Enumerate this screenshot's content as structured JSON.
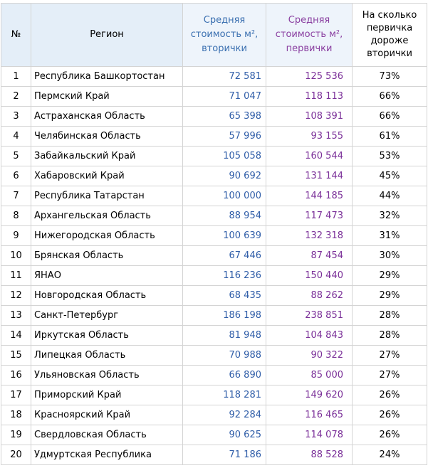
{
  "table": {
    "headers": {
      "num": "№",
      "region": "Регион",
      "secondary": [
        "Средняя",
        "стоимость м²,",
        "вторички"
      ],
      "primary": [
        "Средняя",
        "стоимость м²,",
        "первички"
      ],
      "percent": [
        "На сколько",
        "первичка",
        "дороже",
        "вторички"
      ]
    },
    "rows": [
      {
        "n": "1",
        "region": "Республика Башкортостан",
        "secondary": "72 581",
        "primary": "125 536",
        "percent": "73%"
      },
      {
        "n": "2",
        "region": "Пермский Край",
        "secondary": "71 047",
        "primary": "118 113",
        "percent": "66%"
      },
      {
        "n": "3",
        "region": "Астраханская Область",
        "secondary": "65 398",
        "primary": "108 391",
        "percent": "66%"
      },
      {
        "n": "4",
        "region": "Челябинская Область",
        "secondary": "57 996",
        "primary": "93 155",
        "percent": "61%"
      },
      {
        "n": "5",
        "region": "Забайкальский Край",
        "secondary": "105 058",
        "primary": "160 544",
        "percent": "53%"
      },
      {
        "n": "6",
        "region": "Хабаровский Край",
        "secondary": "90 692",
        "primary": "131 144",
        "percent": "45%"
      },
      {
        "n": "7",
        "region": "Республика Татарстан",
        "secondary": "100 000",
        "primary": "144 185",
        "percent": "44%"
      },
      {
        "n": "8",
        "region": "Архангельская Область",
        "secondary": "88 954",
        "primary": "117 473",
        "percent": "32%"
      },
      {
        "n": "9",
        "region": "Нижегородская Область",
        "secondary": "100 639",
        "primary": "132 318",
        "percent": "31%"
      },
      {
        "n": "10",
        "region": "Брянская Область",
        "secondary": "67 446",
        "primary": "87 454",
        "percent": "30%"
      },
      {
        "n": "11",
        "region": "ЯНАО",
        "secondary": "116 236",
        "primary": "150 440",
        "percent": "29%"
      },
      {
        "n": "12",
        "region": "Новгородская Область",
        "secondary": "68 435",
        "primary": "88 262",
        "percent": "29%"
      },
      {
        "n": "13",
        "region": "Санкт-Петербург",
        "secondary": "186 198",
        "primary": "238 851",
        "percent": "28%"
      },
      {
        "n": "14",
        "region": "Иркутская Область",
        "secondary": "81 948",
        "primary": "104 843",
        "percent": "28%"
      },
      {
        "n": "15",
        "region": "Липецкая Область",
        "secondary": "70 988",
        "primary": "90 322",
        "percent": "27%"
      },
      {
        "n": "16",
        "region": "Ульяновская Область",
        "secondary": "66 890",
        "primary": "85 000",
        "percent": "27%"
      },
      {
        "n": "17",
        "region": "Приморский Край",
        "secondary": "118 281",
        "primary": "149 620",
        "percent": "26%"
      },
      {
        "n": "18",
        "region": "Красноярский Край",
        "secondary": "92 284",
        "primary": "116 465",
        "percent": "26%"
      },
      {
        "n": "19",
        "region": "Свердловская Область",
        "secondary": "90 625",
        "primary": "114 078",
        "percent": "26%"
      },
      {
        "n": "20",
        "region": "Удмуртская Республика",
        "secondary": "71 186",
        "primary": "88 528",
        "percent": "24%"
      }
    ]
  },
  "colors": {
    "header_bg": "#e4eef8",
    "secondary_text": "#2f5da8",
    "primary_text": "#7a2f98",
    "border": "#d4d4d4"
  }
}
